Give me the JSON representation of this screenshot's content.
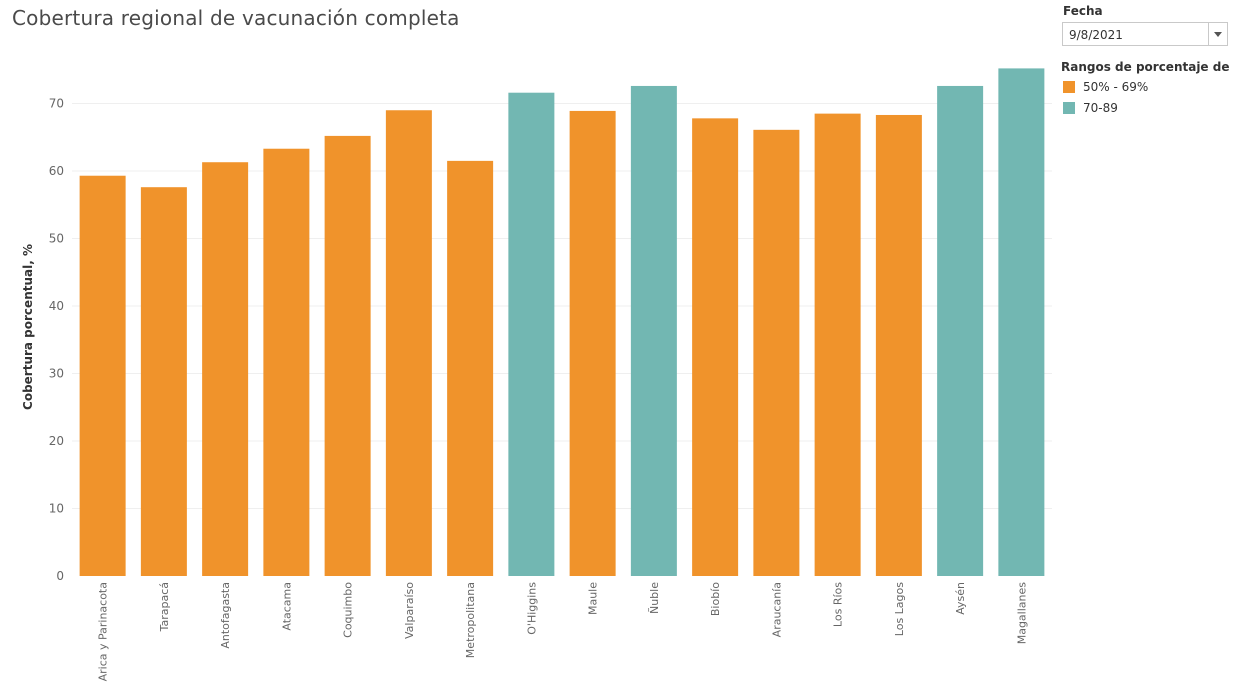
{
  "title": "Cobertura regional de vacunación completa",
  "filter": {
    "label": "Fecha",
    "value": "9/8/2021"
  },
  "legend": {
    "title": "Rangos de porcentaje de c...",
    "items": [
      {
        "label": "50% - 69%",
        "color": "#f0932b"
      },
      {
        "label": "70-89",
        "color": "#72b7b2"
      }
    ]
  },
  "chart_data": {
    "type": "bar",
    "ylabel": "Cobertura porcentual, %",
    "xlabel": "",
    "ylim": [
      0,
      75
    ],
    "yticks": [
      0,
      10,
      20,
      30,
      40,
      50,
      60,
      70
    ],
    "grid": true,
    "categories": [
      "Arica y Parinacota",
      "Tarapacá",
      "Antofagasta",
      "Atacama",
      "Coquimbo",
      "Valparaíso",
      "Metropolitana",
      "O'Higgins",
      "Maule",
      "Ñuble",
      "Biobío",
      "Araucanía",
      "Los Ríos",
      "Los Lagos",
      "Aysén",
      "Magallanes"
    ],
    "values": [
      59.3,
      57.6,
      61.3,
      63.3,
      65.2,
      69.0,
      61.5,
      71.6,
      68.9,
      72.6,
      67.8,
      66.1,
      68.5,
      68.3,
      72.6,
      75.2
    ],
    "range": [
      "50% - 69%",
      "50% - 69%",
      "50% - 69%",
      "50% - 69%",
      "50% - 69%",
      "50% - 69%",
      "50% - 69%",
      "70-89",
      "50% - 69%",
      "70-89",
      "50% - 69%",
      "50% - 69%",
      "50% - 69%",
      "50% - 69%",
      "70-89",
      "70-89"
    ],
    "legend_position": "top-right"
  }
}
